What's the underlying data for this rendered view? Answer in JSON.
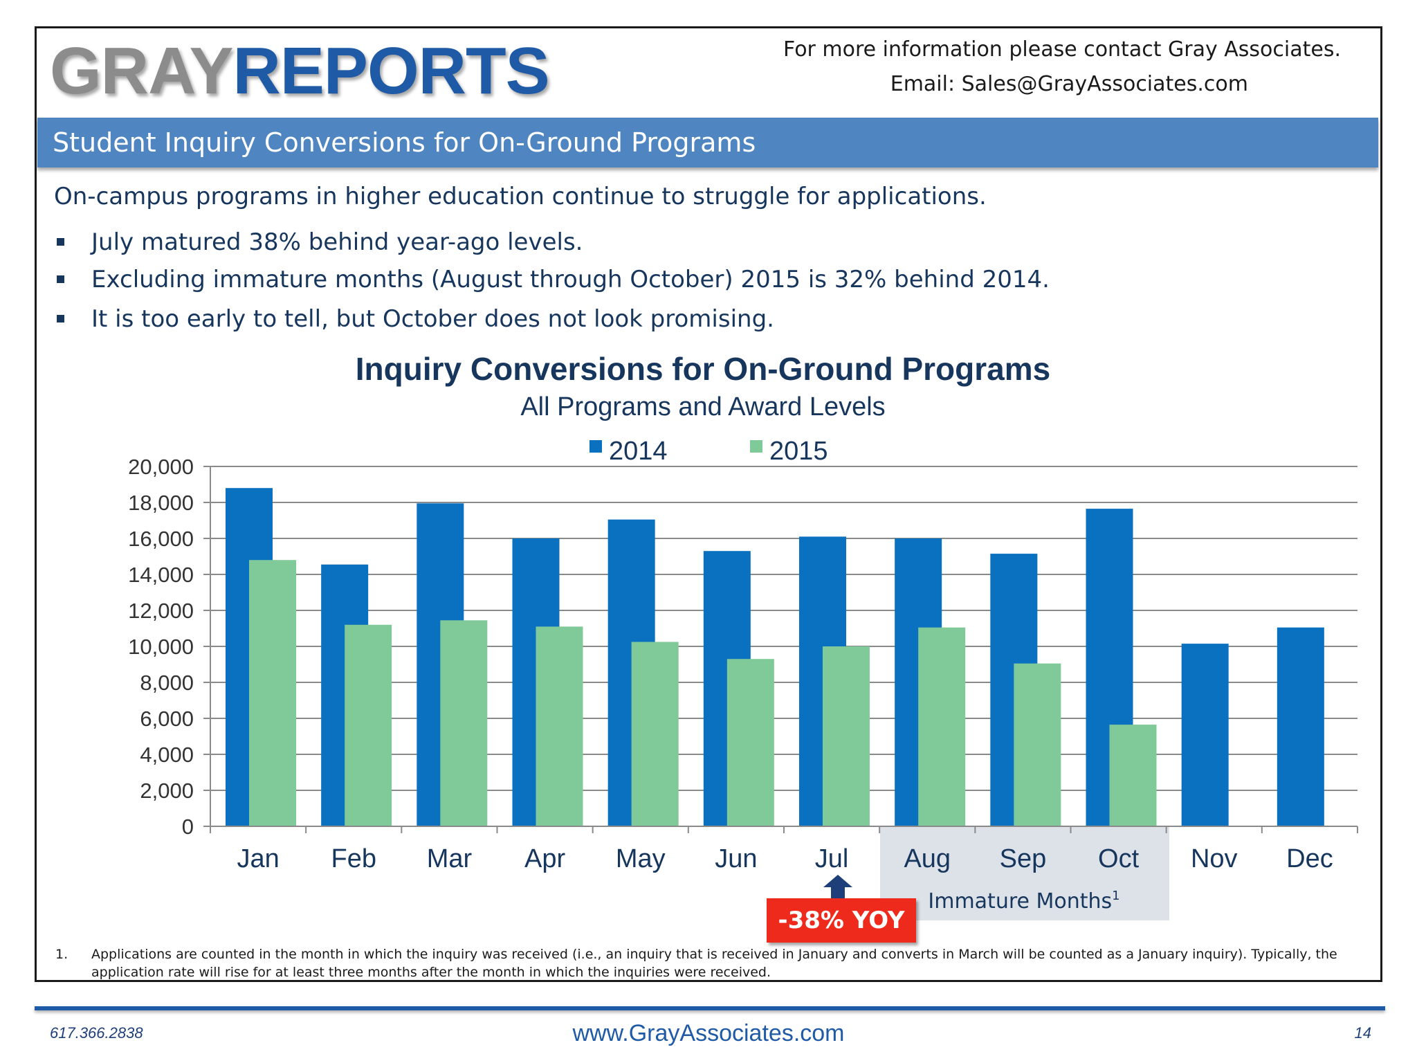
{
  "header": {
    "logo_gray": "GRAY",
    "logo_reports": "REPORTS",
    "contact_line1": "For more information please contact Gray Associates.",
    "contact_line2": "Email:  Sales@GrayAssociates.com"
  },
  "banner": {
    "title": "Student Inquiry Conversions for On-Ground Programs"
  },
  "summary": {
    "intro": "On-campus programs in higher education continue to struggle for applications.",
    "bullets": [
      "July matured 38% behind year-ago levels.",
      "Excluding immature months (August through October) 2015 is 32% behind 2014.",
      "It is too early to tell, but October does not look promising."
    ]
  },
  "chart_data": {
    "type": "bar",
    "title": "Inquiry Conversions for On-Ground Programs",
    "subtitle": "All Programs and Award Levels",
    "categories": [
      "Jan",
      "Feb",
      "Mar",
      "Apr",
      "May",
      "Jun",
      "Jul",
      "Aug",
      "Sep",
      "Oct",
      "Nov",
      "Dec"
    ],
    "series": [
      {
        "name": "2014",
        "color": "#0a70c0",
        "values": [
          18800,
          14550,
          17950,
          16000,
          17050,
          15300,
          16100,
          16000,
          15150,
          17650,
          10150,
          11050
        ]
      },
      {
        "name": "2015",
        "color": "#80c998",
        "values": [
          14800,
          11200,
          11450,
          11100,
          10250,
          9300,
          10000,
          11050,
          9050,
          5650,
          null,
          null
        ]
      }
    ],
    "ylim": [
      0,
      20000
    ],
    "yticks": [
      "0",
      "2,000",
      "4,000",
      "6,000",
      "8,000",
      "10,000",
      "12,000",
      "14,000",
      "16,000",
      "18,000",
      "20,000"
    ],
    "ytick_values": [
      0,
      2000,
      4000,
      6000,
      8000,
      10000,
      12000,
      14000,
      16000,
      18000,
      20000
    ],
    "grid": true,
    "legend_position": "top",
    "annotations": {
      "immature_label": "Immature Months",
      "immature_superscript": "1",
      "yoy_label": "-38% YOY"
    }
  },
  "footnote": {
    "number": "1.",
    "text": "Applications are counted in the month in which the inquiry was received (i.e., an inquiry that is received in January and converts in March will be counted as a January inquiry).  Typically, the application rate will rise for at least three months after the month in which the inquiries were received."
  },
  "footer": {
    "phone": "617.366.2838",
    "website": "www.GrayAssociates.com",
    "page": "14"
  }
}
